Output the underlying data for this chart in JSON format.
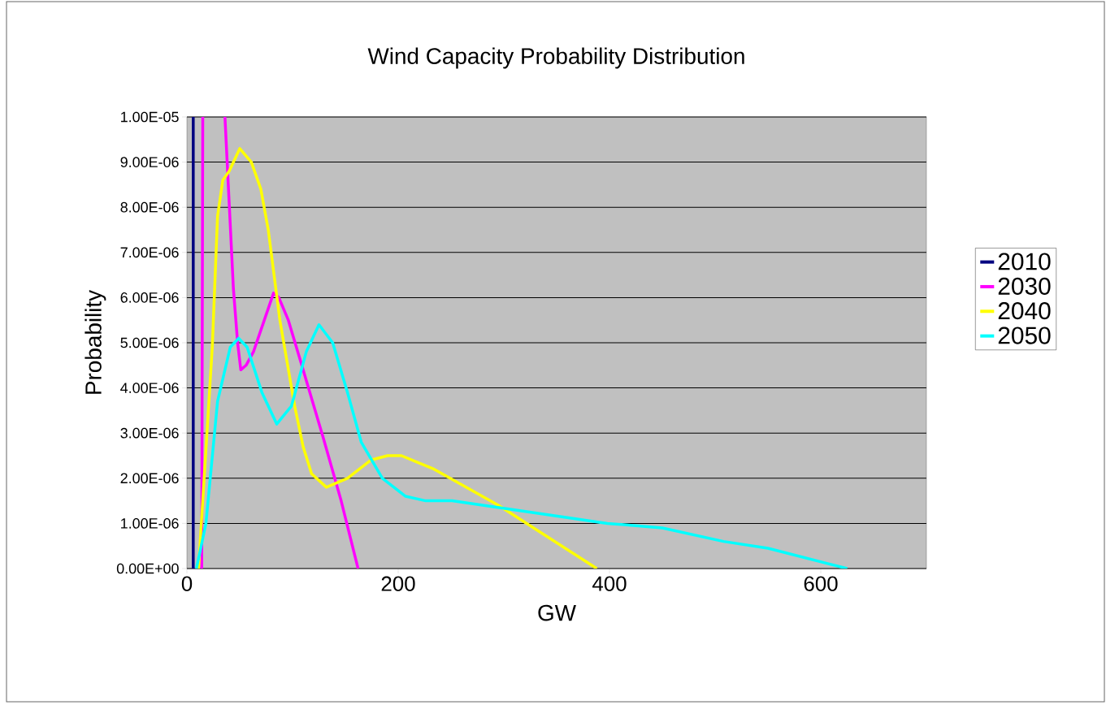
{
  "chart_data": {
    "type": "line",
    "title": "Wind Capacity Probability Distribution",
    "xlabel": "GW",
    "ylabel": "Probability",
    "xlim": [
      0,
      700
    ],
    "xticks": [
      0,
      200,
      400,
      600
    ],
    "ylim": [
      0,
      1e-05
    ],
    "yticks": [
      {
        "value": 0,
        "label": "0.00E+00"
      },
      {
        "value": 1e-06,
        "label": "1.00E-06"
      },
      {
        "value": 2e-06,
        "label": "2.00E-06"
      },
      {
        "value": 3e-06,
        "label": "3.00E-06"
      },
      {
        "value": 4e-06,
        "label": "4.00E-06"
      },
      {
        "value": 5e-06,
        "label": "5.00E-06"
      },
      {
        "value": 6e-06,
        "label": "6.00E-06"
      },
      {
        "value": 7e-06,
        "label": "7.00E-06"
      },
      {
        "value": 8e-06,
        "label": "8.00E-06"
      },
      {
        "value": 9e-06,
        "label": "9.00E-06"
      },
      {
        "value": 1e-05,
        "label": "1.00E-05"
      }
    ],
    "grid": "y",
    "legend": "right",
    "marker": "none",
    "line_style": "solid",
    "series": [
      {
        "name": "2010",
        "color": "#000080",
        "x": [
          6,
          6
        ],
        "values": [
          0,
          1e-05
        ]
      },
      {
        "name": "2030",
        "color": "#ff00ff",
        "x": [
          14,
          15,
          25,
          36,
          40,
          44,
          48,
          51,
          56,
          63,
          82,
          87,
          96,
          110,
          129,
          146,
          162
        ],
        "values": [
          0,
          1e-05,
          null,
          1e-05,
          8.1e-06,
          6.2e-06,
          5e-06,
          4.4e-06,
          4.5e-06,
          4.8e-06,
          6.1e-06,
          6e-06,
          5.5e-06,
          4.4e-06,
          2.9e-06,
          1.5e-06,
          0
        ]
      },
      {
        "name": "2040",
        "color": "#ffff00",
        "x": [
          11,
          24,
          29,
          34,
          40,
          50,
          61,
          70,
          77,
          88,
          102,
          110,
          118,
          132,
          152,
          174,
          190,
          203,
          234,
          295,
          388
        ],
        "values": [
          0,
          4.9e-06,
          7.8e-06,
          8.6e-06,
          8.8e-06,
          9.3e-06,
          9e-06,
          8.4e-06,
          7.5e-06,
          5.5e-06,
          3.6e-06,
          2.7e-06,
          2.1e-06,
          1.8e-06,
          2e-06,
          2.4e-06,
          2.5e-06,
          2.5e-06,
          2.2e-06,
          1.4e-06,
          0
        ]
      },
      {
        "name": "2050",
        "color": "#00ffff",
        "x": [
          9,
          18,
          29,
          41,
          49,
          57,
          71,
          85,
          99,
          113,
          125,
          138,
          152,
          165,
          185,
          207,
          226,
          251,
          398,
          450,
          508,
          550,
          625
        ],
        "values": [
          0,
          1e-06,
          3.7e-06,
          4.9e-06,
          5.1e-06,
          4.9e-06,
          3.9e-06,
          3.2e-06,
          3.6e-06,
          4.8e-06,
          5.4e-06,
          5e-06,
          3.9e-06,
          2.8e-06,
          2e-06,
          1.6e-06,
          1.5e-06,
          1.5e-06,
          1e-06,
          9e-07,
          6e-07,
          4.5e-07,
          0
        ]
      }
    ]
  }
}
